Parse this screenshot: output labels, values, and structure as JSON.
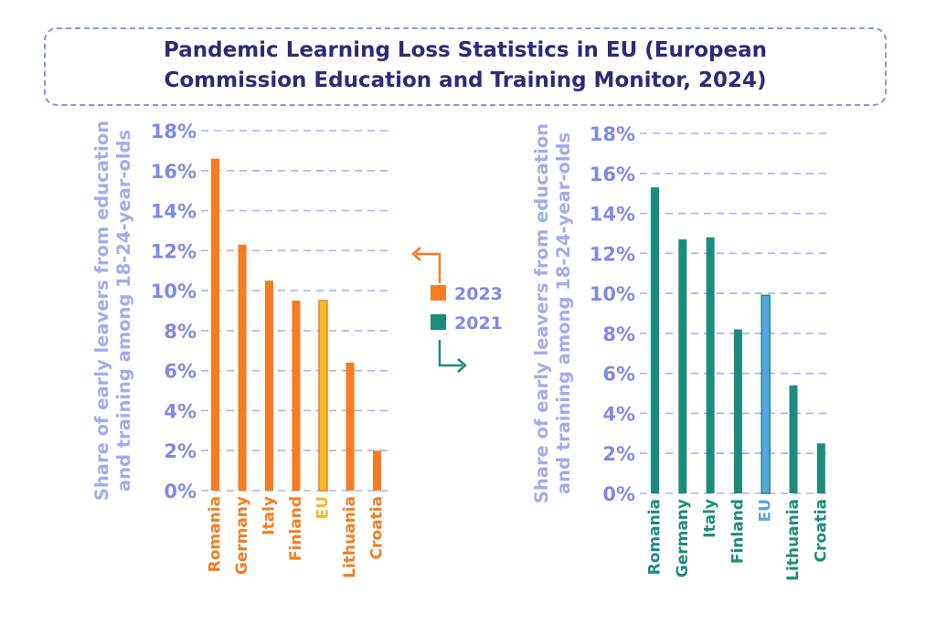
{
  "header": {
    "title_line1": "Pandemic Learning Loss Statistics in EU (European",
    "title_line2": "Commission Education and Training Monitor, 2024)"
  },
  "colors": {
    "series_2023": "#f57c20",
    "series_2021": "#1b8c7b",
    "eu_2023": "#f5b92c",
    "eu_2021": "#5aa5e0",
    "axis_text": "#7f89ea",
    "grid": "#aab2f2"
  },
  "legend": {
    "items": [
      {
        "label": "2023"
      },
      {
        "label": "2021"
      }
    ]
  },
  "chart_data": [
    {
      "type": "bar",
      "name": "2023",
      "categories": [
        "Romania",
        "Germany",
        "Italy",
        "Finland",
        "EU",
        "Lithuania",
        "Croatia"
      ],
      "values": [
        16.6,
        12.3,
        10.5,
        9.5,
        9.5,
        6.4,
        2.0
      ],
      "ylabel_line1": "Share of early leavers from education",
      "ylabel_line2": "and training  among 18-24-year-olds",
      "ylim": [
        0,
        18
      ],
      "yticks": [
        "0%",
        "2%",
        "4%",
        "6%",
        "8%",
        "10%",
        "12%",
        "14%",
        "16%",
        "18%"
      ],
      "grid": true
    },
    {
      "type": "bar",
      "name": "2021",
      "categories": [
        "Romania",
        "Germany",
        "Italy",
        "Finland",
        "EU",
        "Lithuania",
        "Croatia"
      ],
      "values": [
        15.3,
        12.7,
        12.8,
        8.2,
        9.9,
        5.4,
        2.5
      ],
      "ylabel_line1": "Share of early leavers from education",
      "ylabel_line2": "and training  among 18-24-year-olds",
      "ylim": [
        0,
        18
      ],
      "yticks": [
        "0%",
        "2%",
        "4%",
        "6%",
        "8%",
        "10%",
        "12%",
        "14%",
        "16%",
        "18%"
      ],
      "grid": true
    }
  ]
}
